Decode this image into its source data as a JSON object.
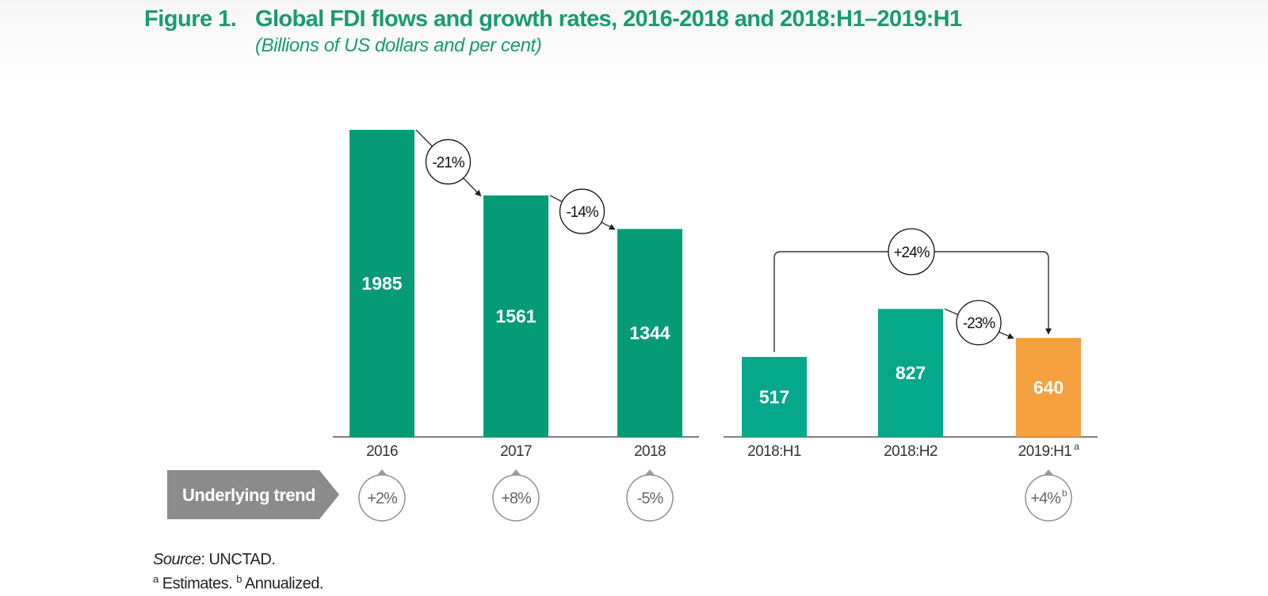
{
  "figure": {
    "number": "Figure 1.",
    "title": "Global FDI flows and growth rates, 2016-2018 and 2018:H1–2019:H1",
    "subtitle": "(Billions of US dollars and per cent)"
  },
  "chart_data": {
    "type": "bar",
    "title": "Global FDI flows and growth rates, 2016-2018 and 2018:H1–2019:H1",
    "subtitle": "(Billions of US dollars and per cent)",
    "ylim": [
      0,
      1985
    ],
    "grid": false,
    "colors": {
      "annual": "#069b77",
      "half": "#06a88c",
      "estimate": "#f5a03e",
      "trend_arrow": "#8b8b8b",
      "axis": "#555555"
    },
    "groups": [
      {
        "name": "annual",
        "bars": [
          {
            "category": "2016",
            "value": 1985,
            "color_key": "annual"
          },
          {
            "category": "2017",
            "value": 1561,
            "color_key": "annual"
          },
          {
            "category": "2018",
            "value": 1344,
            "color_key": "annual"
          }
        ]
      },
      {
        "name": "half-year",
        "bars": [
          {
            "category": "2018:H1",
            "value": 517,
            "color_key": "half"
          },
          {
            "category": "2018:H2",
            "value": 827,
            "color_key": "half"
          },
          {
            "category": "2019:H1",
            "category_sup": "a",
            "value": 640,
            "color_key": "estimate"
          }
        ]
      }
    ],
    "growth_annotations": [
      {
        "from": "2016",
        "to": "2017",
        "label": "-21%"
      },
      {
        "from": "2017",
        "to": "2018",
        "label": "-14%"
      },
      {
        "from": "2018:H2",
        "to": "2019:H1",
        "label": "-23%"
      },
      {
        "from": "2018:H1",
        "to": "2019:H1",
        "label": "+24%",
        "style": "bracket"
      }
    ],
    "underlying_trend": {
      "label": "Underlying trend",
      "values": [
        {
          "category": "2016",
          "label": "+2%"
        },
        {
          "category": "2017",
          "label": "+8%"
        },
        {
          "category": "2018",
          "label": "-5%"
        },
        {
          "category": "2019:H1",
          "label": "+4%",
          "sup": "b"
        }
      ]
    }
  },
  "notes": {
    "source_label": "Source",
    "source_text": ": UNCTAD.",
    "fn_a_mark": "a",
    "fn_a_text": " Estimates. ",
    "fn_b_mark": "b",
    "fn_b_text": " Annualized."
  }
}
